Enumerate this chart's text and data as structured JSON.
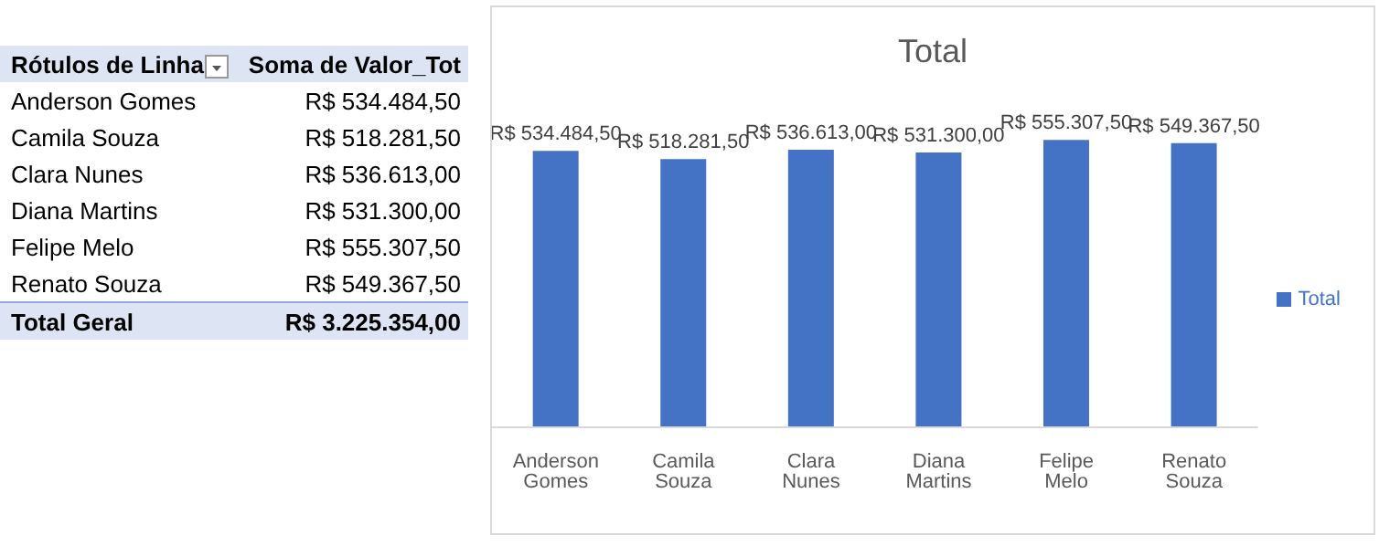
{
  "chart_data": {
    "type": "bar",
    "title": "Total",
    "categories": [
      "Anderson Gomes",
      "Camila Souza",
      "Clara Nunes",
      "Diana Martins",
      "Felipe Melo",
      "Renato Souza"
    ],
    "series": [
      {
        "name": "Total",
        "color": "#4472c4",
        "values": [
          534484.5,
          518281.5,
          536613,
          531300,
          555307.5,
          549367.5
        ],
        "value_labels": [
          "R$ 534.484,50",
          "R$ 518.281,50",
          "R$ 536.613,00",
          "R$ 531.300,00",
          "R$ 555.307,50",
          "R$ 549.367,50"
        ]
      }
    ],
    "tick_labels": "x",
    "grid": false,
    "legend": "right",
    "annotations": [
      "Rótulos de Linha",
      "Soma de Valor_Tot",
      "Total Geral",
      "R$ 3.225.354,00"
    ]
  }
}
